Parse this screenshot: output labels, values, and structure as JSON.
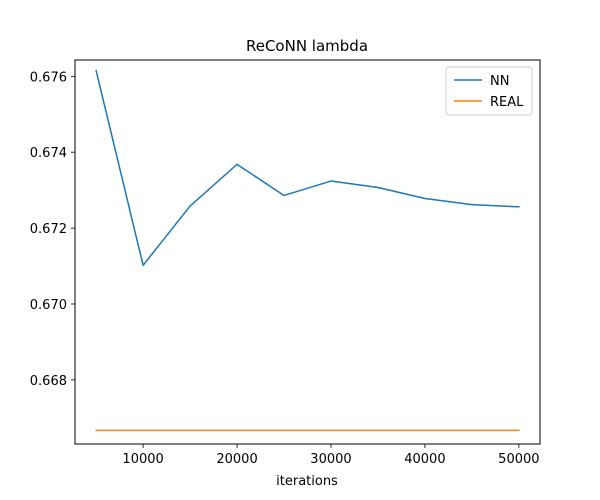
{
  "chart_data": {
    "type": "line",
    "title": "ReCoNN lambda",
    "xlabel": "iterations",
    "ylabel": "",
    "x": [
      5000,
      10000,
      15000,
      20000,
      25000,
      30000,
      35000,
      40000,
      45000,
      50000
    ],
    "xlim": [
      2750,
      52250
    ],
    "ylim": [
      0.66631,
      0.67643
    ],
    "xticks": [
      10000,
      20000,
      30000,
      40000,
      50000
    ],
    "xtick_labels": [
      "10000",
      "20000",
      "30000",
      "40000",
      "50000"
    ],
    "yticks": [
      0.668,
      0.67,
      0.672,
      0.674,
      0.676
    ],
    "ytick_labels": [
      "0.668",
      "0.670",
      "0.672",
      "0.674",
      "0.676"
    ],
    "grid": false,
    "legend_position": "top-right",
    "series": [
      {
        "name": "NN",
        "color": "#1f77b4",
        "values": [
          0.67615,
          0.67102,
          0.67258,
          0.67368,
          0.67286,
          0.67324,
          0.67307,
          0.67278,
          0.67262,
          0.67256
        ]
      },
      {
        "name": "REAL",
        "color": "#ff7f0e",
        "values": [
          0.66667,
          0.66667,
          0.66667,
          0.66667,
          0.66667,
          0.66667,
          0.66667,
          0.66667,
          0.66667,
          0.66667
        ]
      }
    ]
  }
}
